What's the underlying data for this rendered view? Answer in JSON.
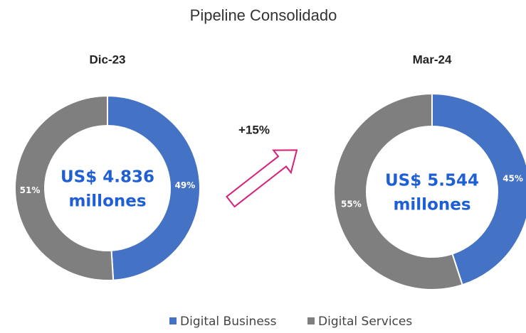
{
  "title": "Pipeline Consolidado",
  "annotation": "+15%",
  "chart_data": [
    {
      "type": "pie",
      "title": "Dic-23",
      "center_label": [
        "US$ 4.836",
        "millones"
      ],
      "categories": [
        "Digital Business",
        "Digital Services"
      ],
      "values": [
        49,
        51
      ],
      "value_labels": [
        "49%",
        "51%"
      ],
      "colors": [
        "#4472c4",
        "#7f7f7f"
      ]
    },
    {
      "type": "pie",
      "title": "Mar-24",
      "center_label": [
        "US$ 5.544",
        "millones"
      ],
      "categories": [
        "Digital Business",
        "Digital Services"
      ],
      "values": [
        45,
        55
      ],
      "value_labels": [
        "45%",
        "55%"
      ],
      "colors": [
        "#4472c4",
        "#7f7f7f"
      ]
    }
  ]
}
